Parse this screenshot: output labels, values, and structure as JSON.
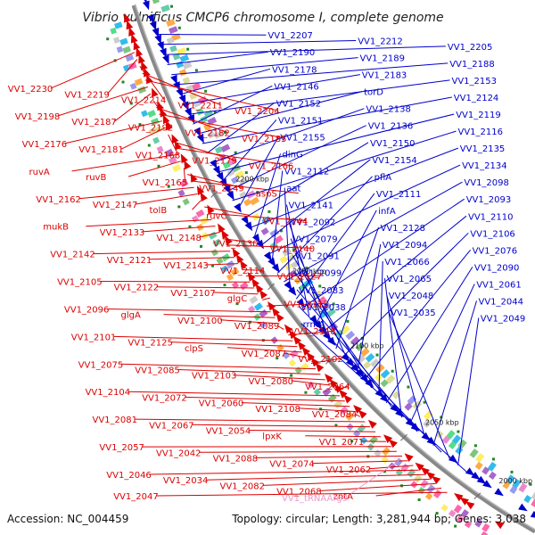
{
  "title": "Vibrio vulnificus CMCP6 chromosome I, complete genome",
  "accession": "Accession: NC_004459",
  "topology": "Topology: circular; Length: 3,281,944 bp; Genes: 3,038",
  "colors": {
    "forward": "#0000cc",
    "reverse": "#dd0000",
    "rna": "#ee99cc",
    "backbone": "#888888",
    "cds_marker": "#228822"
  },
  "ticks": [
    "2200 kbp",
    "2150 kbp",
    "2100 kbp",
    "2050 kbp",
    "2000 kbp"
  ],
  "genes_forward": [
    "VV1_2207",
    "VV1_2212",
    "VV1_2205",
    "VV1_2190",
    "VV1_2189",
    "VV1_2188",
    "VV1_2178",
    "VV1_2183",
    "VV1_2153",
    "VV1_2146",
    "torD",
    "VV1_2124",
    "VV1_2152",
    "VV1_2138",
    "VV1_2119",
    "VV1_2151",
    "VV1_2136",
    "VV1_2116",
    "VV1_2155",
    "VV1_2150",
    "VV1_2135",
    "dinG",
    "VV1_2154",
    "VV1_2134",
    "VV1_2112",
    "pflA",
    "VV1_2098",
    "aat",
    "VV1_2111",
    "VV1_2093",
    "VV1_2141",
    "infA",
    "VV1_2110",
    "VV1_2092",
    "VV1_2128",
    "VV1_2106",
    "VV1_2079",
    "VV1_2094",
    "VV1_2076",
    "VV1_2091",
    "VV1_2066",
    "VV1_2090",
    "VV1_2099",
    "VV1_2065",
    "VV1_2061",
    "VV1_2083",
    "VV1_2048",
    "VV1_2044",
    "VV1_2038",
    "VV1_2035",
    "VV1_2049",
    "rrmA"
  ],
  "genes_reverse": [
    "VV1_2230",
    "VV1_2219",
    "VV1_2214",
    "VV1_2211",
    "VV1_2204",
    "VV1_2198",
    "VV1_2187",
    "VV1_2192",
    "VV1_2182",
    "VV1_2185",
    "VV1_2176",
    "VV1_2181",
    "VV1_2168",
    "VV1_2179",
    "VV1_2166",
    "ruvA",
    "ruvB",
    "VV1_2165",
    "VV1_2149",
    "aspS",
    "VV1_2162",
    "VV1_2147",
    "tolB",
    "ruvC",
    "VV1_2144",
    "mukB",
    "VV1_2133",
    "VV1_2148",
    "VV1_2130",
    "VV1_2140",
    "VV1_2142",
    "VV1_2121",
    "VV1_2143",
    "VV1_2114",
    "VV1_2127",
    "VV1_2105",
    "VV1_2122",
    "VV1_2107",
    "glgC",
    "VV1_2115",
    "VV1_2096",
    "glgA",
    "VV1_2100",
    "VV1_2089",
    "VV1_2118",
    "VV1_2101",
    "VV1_2125",
    "clpS",
    "VV1_2087",
    "VV1_2102",
    "VV1_2075",
    "VV1_2085",
    "VV1_2103",
    "VV1_2080",
    "VV1_2064",
    "VV1_2104",
    "VV1_2072",
    "VV1_2060",
    "VV1_2108",
    "VV1_2084",
    "VV1_2081",
    "VV1_2067",
    "VV1_2054",
    "lpxK",
    "VV1_2071",
    "VV1_2057",
    "VV1_2042",
    "VV1_2088",
    "VV1_2074",
    "VV1_2062",
    "VV1_2046",
    "VV1_2034",
    "VV1_2082",
    "VV1_2068",
    "zntA",
    "VV1_2047"
  ],
  "genes_rna": [
    "VV1_tRNAArg9"
  ]
}
